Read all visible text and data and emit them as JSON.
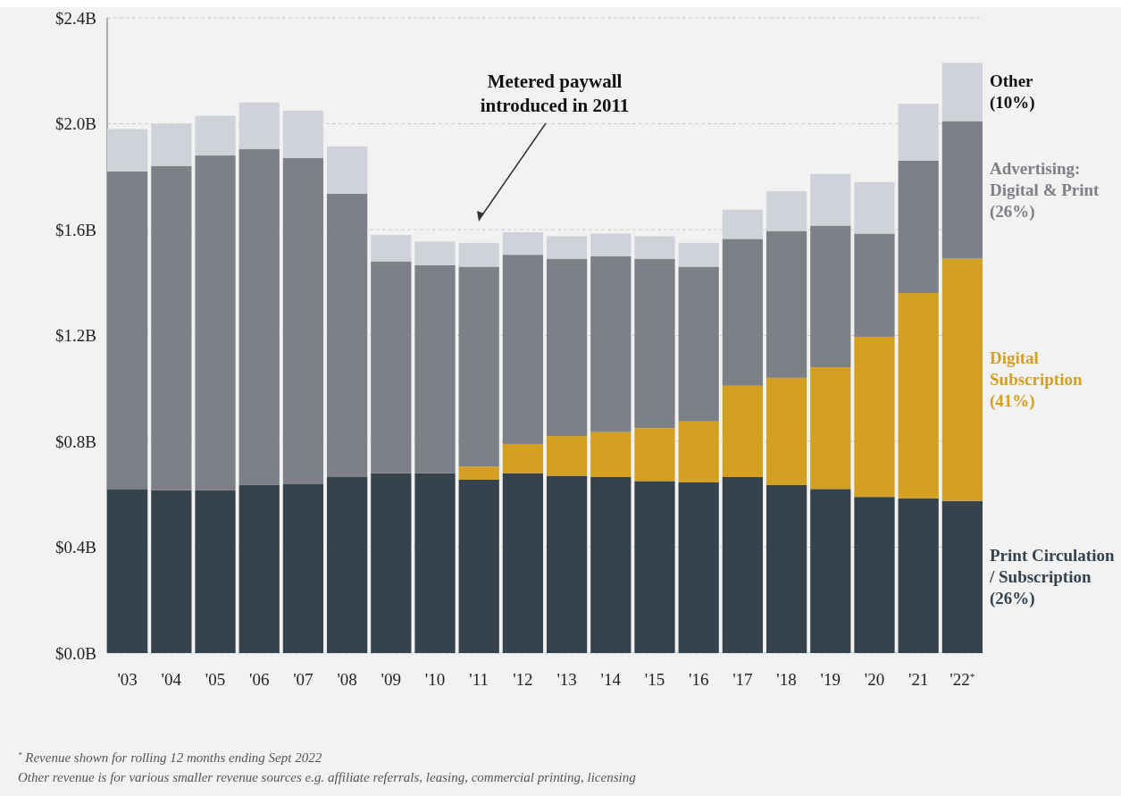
{
  "chart_data": {
    "type": "bar",
    "stacked": true,
    "legend": false,
    "grid": "y",
    "categories": [
      "'03",
      "'04",
      "'05",
      "'06",
      "'07",
      "'08",
      "'09",
      "'10",
      "'11",
      "'12",
      "'13",
      "'14",
      "'15",
      "'16",
      "'17",
      "'18",
      "'19",
      "'20",
      "'21",
      "'22$^{*}$"
    ],
    "ylim": [
      0,
      2.4
    ],
    "yticks": [
      {
        "value": 0,
        "label": "$0.0B"
      },
      {
        "value": 0.4,
        "label": "$0.4B"
      },
      {
        "value": 0.8,
        "label": "$0.8B"
      },
      {
        "value": 1.2,
        "label": "$1.2B"
      },
      {
        "value": 1.6,
        "label": "$1.6B"
      },
      {
        "value": 2.0,
        "label": "$2.0B"
      },
      {
        "value": 2.4,
        "label": "$2.4B"
      }
    ],
    "series": [
      {
        "name": "Print Circulation\n/ Subscription\n(26%)",
        "color": "#36434d",
        "values": [
          0.62,
          0.615,
          0.615,
          0.635,
          0.64,
          0.665,
          0.68,
          0.68,
          0.655,
          0.68,
          0.67,
          0.665,
          0.65,
          0.645,
          0.665,
          0.635,
          0.62,
          0.59,
          0.585,
          0.575
        ]
      },
      {
        "name": "Digital\nSubscription\n(41%)",
        "color": "#d4a021",
        "values": [
          0,
          0,
          0,
          0,
          0,
          0,
          0,
          0,
          0.05,
          0.11,
          0.15,
          0.17,
          0.2,
          0.23,
          0.345,
          0.405,
          0.46,
          0.605,
          0.775,
          0.915
        ]
      },
      {
        "name": "Advertising:\nDigital & Print\n(26%)",
        "color": "#7d8187",
        "values": [
          1.2,
          1.225,
          1.265,
          1.27,
          1.23,
          1.07,
          0.8,
          0.785,
          0.755,
          0.715,
          0.67,
          0.665,
          0.64,
          0.585,
          0.555,
          0.555,
          0.535,
          0.39,
          0.5,
          0.52
        ]
      },
      {
        "name": "Other\n(10%)",
        "color": "#cfd3d9",
        "values": [
          0.16,
          0.16,
          0.15,
          0.175,
          0.18,
          0.18,
          0.1,
          0.09,
          0.09,
          0.085,
          0.085,
          0.085,
          0.085,
          0.09,
          0.11,
          0.15,
          0.195,
          0.195,
          0.215,
          0.22
        ]
      }
    ],
    "annotations": [
      "Metered paywall\nintroduced in 2011",
      "$^{*}$ Revenue shown for rolling 12 months ending Sept 2022",
      "Other revenue is for various smaller revenue sources e.g. affiliate referrals, leasing, commercial printing, licensing"
    ]
  }
}
